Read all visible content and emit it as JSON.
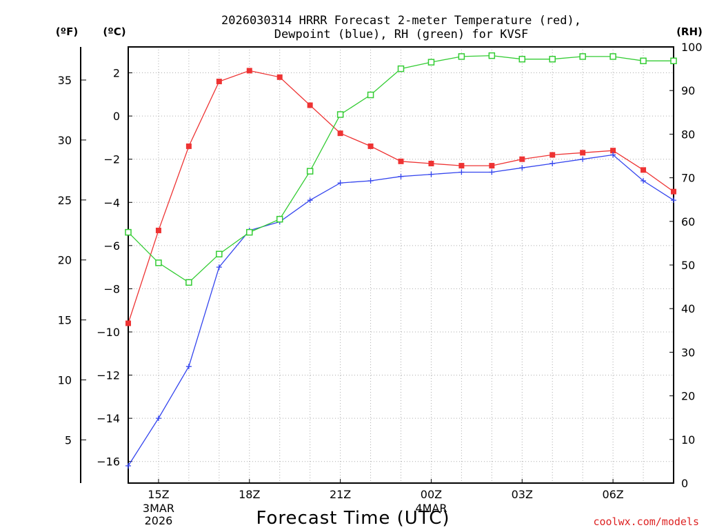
{
  "chart_data": {
    "type": "line",
    "title_lines": [
      "2026030314 HRRR Forecast 2-meter Temperature (red),",
      "Dewpoint (blue), RH (green) for KVSF"
    ],
    "xlabel": "Forecast Time (UTC)",
    "credit": "coolwx.com/models",
    "units": {
      "fahrenheit": "(ºF)",
      "celsius": "(ºC)",
      "rh": "(RH)"
    },
    "x_range_hours": [
      14,
      32
    ],
    "x_ticks": [
      {
        "hour": 15,
        "label": "15Z",
        "sub": [
          "3MAR",
          "2026"
        ]
      },
      {
        "hour": 18,
        "label": "18Z",
        "sub": []
      },
      {
        "hour": 21,
        "label": "21Z",
        "sub": []
      },
      {
        "hour": 24,
        "label": "00Z",
        "sub": [
          "4MAR"
        ]
      },
      {
        "hour": 27,
        "label": "03Z",
        "sub": []
      },
      {
        "hour": 30,
        "label": "06Z",
        "sub": []
      }
    ],
    "celsius_axis": {
      "range": [
        -17,
        3.2
      ],
      "ticks": [
        2,
        0,
        -2,
        -4,
        -6,
        -8,
        -10,
        -12,
        -14,
        -16
      ]
    },
    "fahrenheit_axis": {
      "ticks": [
        35,
        30,
        25,
        20,
        15,
        10,
        5
      ]
    },
    "rh_axis": {
      "range": [
        0,
        100
      ],
      "ticks": [
        100,
        90,
        80,
        70,
        60,
        50,
        40,
        30,
        20,
        10,
        0
      ]
    },
    "x_hours": [
      14,
      15,
      16,
      17,
      18,
      19,
      20,
      21,
      22,
      23,
      24,
      25,
      26,
      27,
      28,
      29,
      30,
      31,
      32
    ],
    "series": [
      {
        "name": "Temperature",
        "units": "C",
        "color": "#ee3333",
        "marker": "square-filled",
        "values": [
          -9.6,
          -5.3,
          -1.4,
          1.6,
          2.1,
          1.8,
          0.5,
          -0.8,
          -1.4,
          -2.1,
          -2.2,
          -2.3,
          -2.3,
          -2.0,
          -1.8,
          -1.7,
          -1.6,
          -2.5,
          -3.5
        ]
      },
      {
        "name": "Dewpoint",
        "units": "C",
        "color": "#3344ee",
        "marker": "plus",
        "values": [
          -16.2,
          -14.0,
          -11.6,
          -7.0,
          -5.3,
          -4.9,
          -3.9,
          -3.1,
          -3.0,
          -2.8,
          -2.7,
          -2.6,
          -2.6,
          -2.4,
          -2.2,
          -2.0,
          -1.8,
          -3.0,
          -3.9
        ]
      },
      {
        "name": "RH",
        "units": "%",
        "color": "#33cc33",
        "marker": "square-open",
        "values": [
          57.5,
          50.5,
          46.0,
          52.5,
          57.5,
          60.5,
          71.5,
          84.5,
          89.0,
          95.0,
          96.5,
          97.8,
          98.0,
          97.2,
          97.2,
          97.8,
          97.8,
          96.8,
          96.8
        ]
      }
    ]
  }
}
